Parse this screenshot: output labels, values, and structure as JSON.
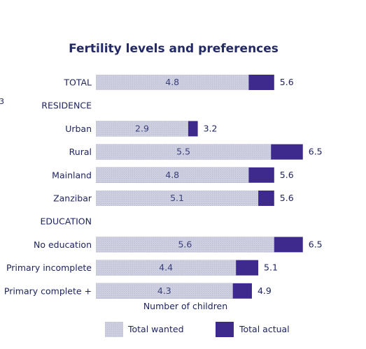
{
  "chart_data": {
    "type": "bar",
    "orientation": "horizontal",
    "stacked": "overlay",
    "title": "Fertility levels and preferences",
    "xlabel": "Number of children",
    "ylabel": "",
    "xlim": [
      0,
      7.0
    ],
    "grid": false,
    "legend_position": "bottom",
    "rows": [
      {
        "kind": "category",
        "label": "TOTAL",
        "wanted": 4.8,
        "actual": 5.6
      },
      {
        "kind": "group",
        "label": "RESIDENCE"
      },
      {
        "kind": "category",
        "label": "Urban",
        "wanted": 2.9,
        "actual": 3.2
      },
      {
        "kind": "category",
        "label": "Rural",
        "wanted": 5.5,
        "actual": 6.5
      },
      {
        "kind": "category",
        "label": "Mainland",
        "wanted": 4.8,
        "actual": 5.6
      },
      {
        "kind": "category",
        "label": "Zanzibar",
        "wanted": 5.1,
        "actual": 5.6
      },
      {
        "kind": "group",
        "label": "EDUCATION"
      },
      {
        "kind": "category",
        "label": "No education",
        "wanted": 5.6,
        "actual": 6.5
      },
      {
        "kind": "category",
        "label": "Primary incomplete",
        "wanted": 4.4,
        "actual": 5.1
      },
      {
        "kind": "category",
        "label": "Primary complete +",
        "wanted": 4.3,
        "actual": 4.9
      }
    ],
    "series": [
      {
        "name": "Total wanted",
        "key": "wanted",
        "color": "#c7c9dc"
      },
      {
        "name": "Total actual",
        "key": "actual",
        "color": "#3e2a8c"
      }
    ]
  },
  "page_edge_mark": "3"
}
